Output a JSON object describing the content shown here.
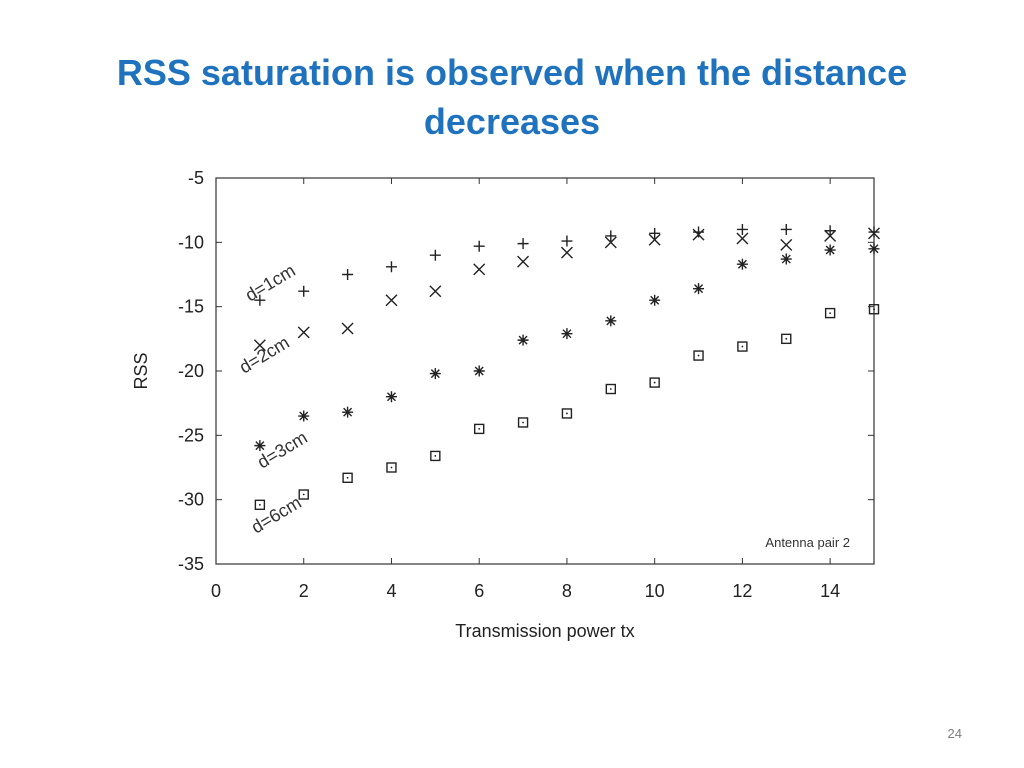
{
  "slide": {
    "title": "RSS saturation is observed when the distance decreases",
    "page_number": "24"
  },
  "chart_data": {
    "type": "scatter",
    "title": "",
    "xlabel": "Transmission power tx",
    "ylabel": "RSS",
    "xlim": [
      0,
      15
    ],
    "ylim": [
      -35,
      -5
    ],
    "xticks": [
      0,
      2,
      4,
      6,
      8,
      10,
      12,
      14
    ],
    "yticks": [
      -5,
      -10,
      -15,
      -20,
      -25,
      -30,
      -35
    ],
    "grid": false,
    "annotation": "Antenna pair 2",
    "series": [
      {
        "name": "d=1cm",
        "marker": "plus",
        "x": [
          1,
          2,
          3,
          4,
          5,
          6,
          7,
          8,
          9,
          10,
          11,
          12,
          13,
          14,
          15
        ],
        "y": [
          -14.5,
          -13.8,
          -12.5,
          -11.9,
          -11.0,
          -10.3,
          -10.1,
          -9.9,
          -9.5,
          -9.3,
          -9.2,
          -9.0,
          -9.0,
          -9.1,
          -9.2
        ]
      },
      {
        "name": "d=2cm",
        "marker": "cross",
        "x": [
          1,
          2,
          3,
          4,
          5,
          6,
          7,
          8,
          9,
          10,
          11,
          12,
          13,
          14,
          15
        ],
        "y": [
          -18.0,
          -17.0,
          -16.7,
          -14.5,
          -13.8,
          -12.1,
          -11.5,
          -10.8,
          -10.0,
          -9.8,
          -9.4,
          -9.7,
          -10.2,
          -9.5,
          -9.3
        ]
      },
      {
        "name": "d=3cm",
        "marker": "asterisk",
        "x": [
          1,
          2,
          3,
          4,
          5,
          6,
          7,
          8,
          9,
          10,
          11,
          12,
          13,
          14,
          15
        ],
        "y": [
          -25.8,
          -23.5,
          -23.2,
          -22.0,
          -20.2,
          -20.0,
          -17.6,
          -17.1,
          -16.1,
          -14.5,
          -13.6,
          -11.7,
          -11.3,
          -10.6,
          -10.5
        ]
      },
      {
        "name": "d=6cm",
        "marker": "square",
        "x": [
          1,
          2,
          3,
          4,
          5,
          6,
          7,
          8,
          9,
          10,
          11,
          12,
          13,
          14,
          15
        ],
        "y": [
          -30.4,
          -29.6,
          -28.3,
          -27.5,
          -26.6,
          -24.5,
          -24.0,
          -23.3,
          -21.4,
          -20.9,
          -18.8,
          -18.1,
          -17.5,
          -15.5,
          -15.2
        ]
      }
    ]
  }
}
